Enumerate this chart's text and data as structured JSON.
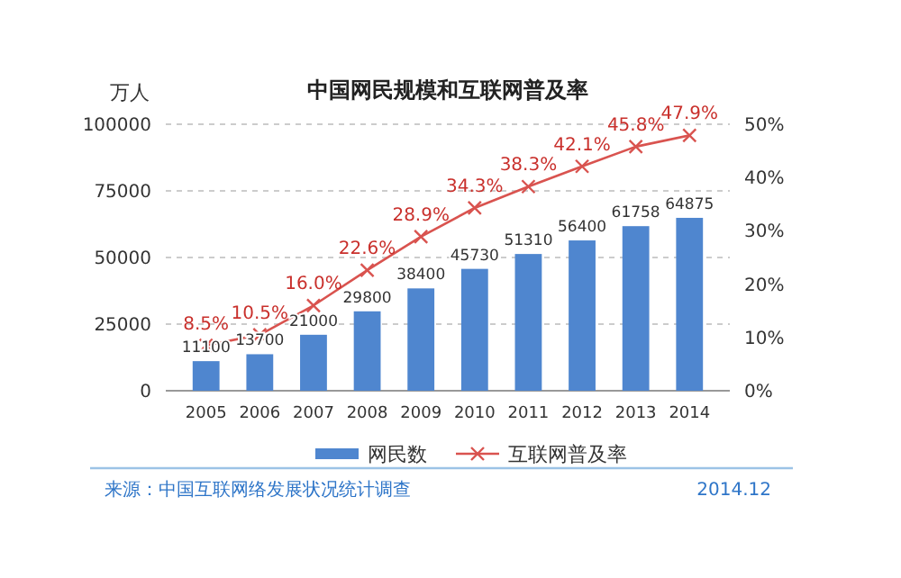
{
  "chart_data": {
    "type": "bar",
    "title": "中国网民规模和互联网普及率",
    "ylabel": "万人",
    "categories": [
      "2005",
      "2006",
      "2007",
      "2008",
      "2009",
      "2010",
      "2011",
      "2012",
      "2013",
      "2014"
    ],
    "series": [
      {
        "name": "网民数",
        "color": "#4f86cf",
        "values": [
          11100,
          13700,
          21000,
          29800,
          38400,
          45730,
          51310,
          56400,
          61758,
          64875
        ],
        "value_labels": [
          "11100",
          "13700",
          "21000",
          "29800",
          "38400",
          "45730",
          "51310",
          "56400",
          "61758",
          "64875"
        ]
      },
      {
        "name": "互联网普及率",
        "type": "line",
        "axis": "y2",
        "color": "#d9534f",
        "marker": "cross",
        "values": [
          8.5,
          10.5,
          16.0,
          22.6,
          28.9,
          34.3,
          38.3,
          42.1,
          45.8,
          47.9
        ],
        "value_labels": [
          "8.5%",
          "10.5%",
          "16.0%",
          "22.6%",
          "28.9%",
          "34.3%",
          "38.3%",
          "42.1%",
          "45.8%",
          "47.9%"
        ]
      }
    ],
    "ylim": [
      0,
      100000
    ],
    "yticks": [
      0,
      25000,
      50000,
      75000,
      100000
    ],
    "y2lim": [
      0,
      50
    ],
    "y2ticks": [
      {
        "value": 0,
        "label": "0%"
      },
      {
        "value": 10,
        "label": "10%"
      },
      {
        "value": 20,
        "label": "20%"
      },
      {
        "value": 30,
        "label": "30%"
      },
      {
        "value": 40,
        "label": "40%"
      },
      {
        "value": 50,
        "label": "50%"
      }
    ],
    "grid": "y",
    "legend": "bottom",
    "annotations": [
      "来源：中国互联网络发展状况统计调查",
      "2014.12"
    ]
  }
}
